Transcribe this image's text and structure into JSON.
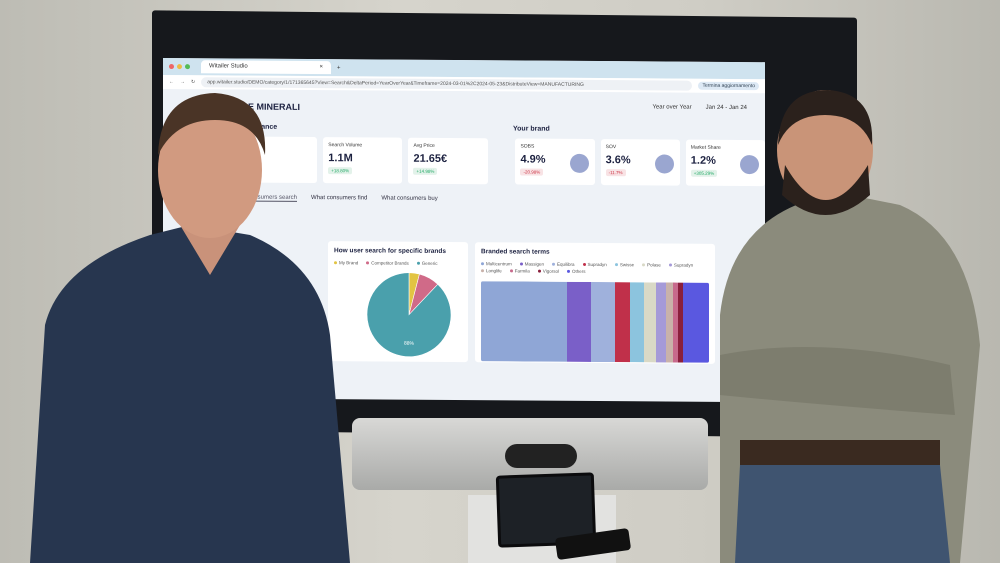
{
  "browser": {
    "tab_title": "Witailer Studio",
    "url": "app.witailer.studio/DEMO/category/1/171365645?View=Search&DeltaPeriod=YearOverYear&Timeframe=2024-03-01%2C2024-05-23&DistributeView=MANUFACTURING",
    "profile_button": "Termina aggiornamento"
  },
  "header": {
    "category": "E MINERALI",
    "comparison": "Year over Year",
    "period": "Jan 24 - Jan 24"
  },
  "sections": {
    "performance": "ormance",
    "your_brand": "Your brand"
  },
  "kpis": [
    {
      "label": "Search Volume",
      "value": "1.1M",
      "delta": "+18.80%",
      "trend": "up"
    },
    {
      "label": "Avg Price",
      "value": "21.65€",
      "delta": "+14.98%",
      "trend": "up"
    }
  ],
  "brand_kpis": [
    {
      "label": "SOBS",
      "value": "4.9%",
      "delta": "-20.98%",
      "trend": "down"
    },
    {
      "label": "SOV",
      "value": "3.6%",
      "delta": "-11.7%",
      "trend": "down"
    },
    {
      "label": "Market Share",
      "value": "1.2%",
      "delta": "+305.29%",
      "trend": "up"
    }
  ],
  "tabs": [
    "consumers search",
    "What consumers find",
    "What consumers buy"
  ],
  "pie_panel": {
    "title": "How user search for specific brands",
    "legend": [
      {
        "label": "My Brand",
        "color": "#e2c443"
      },
      {
        "label": "Competitor Brands",
        "color": "#d06a88"
      },
      {
        "label": "Generic",
        "color": "#4aa0ac"
      }
    ],
    "slices": [
      4,
      8,
      88
    ],
    "center_label": "88%"
  },
  "terms_panel": {
    "title": "Branded search terms",
    "terms": [
      {
        "label": "Multicentrum",
        "color": "#8fa6d6",
        "share": 36
      },
      {
        "label": "Massigen",
        "color": "#7a5fc8",
        "share": 10
      },
      {
        "label": "Equilibra",
        "color": "#9fb1dc",
        "share": 10
      },
      {
        "label": "Supradyn",
        "color": "#c0304a",
        "share": 6
      },
      {
        "label": "Swisse",
        "color": "#8cc4de",
        "share": 6
      },
      {
        "label": "Polase",
        "color": "#d9d9c6",
        "share": 5
      },
      {
        "label": "Supradyn",
        "color": "#a59ad8",
        "share": 4
      },
      {
        "label": "Longlife",
        "color": "#c9b2aa",
        "share": 3
      },
      {
        "label": "Farmila",
        "color": "#c76a8c",
        "share": 2
      },
      {
        "label": "Vigorsol",
        "color": "#8a1f3c",
        "share": 2
      },
      {
        "label": "Others",
        "color": "#5a58e0",
        "share": 11
      }
    ]
  },
  "colors": {
    "wall": "#cfcdc5",
    "shirt_left": "#27364f",
    "shirt_right": "#8a8a7a",
    "screen_bg": "#eef2f7"
  }
}
